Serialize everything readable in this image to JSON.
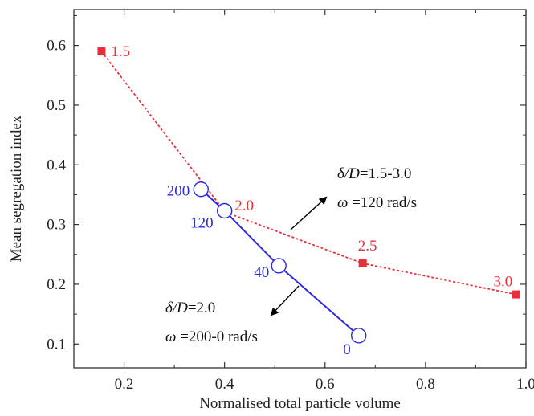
{
  "chart_data": {
    "type": "line",
    "xlabel": "Normalised total particle volume",
    "ylabel": "Mean segregation index",
    "xlim": [
      0.1,
      1.0
    ],
    "ylim": [
      0.06,
      0.66
    ],
    "xticks": [
      0.2,
      0.4,
      0.6,
      0.8,
      1.0
    ],
    "xtick_labels": [
      "0.2",
      "0.4",
      "0.6",
      "0.8",
      "1.0"
    ],
    "yticks": [
      0.1,
      0.2,
      0.3,
      0.4,
      0.5,
      0.6
    ],
    "ytick_labels": [
      "0.1",
      "0.2",
      "0.3",
      "0.4",
      "0.5",
      "0.6"
    ],
    "grid": false,
    "series": [
      {
        "color": "#e8303a",
        "line_style": "dotted",
        "marker": "filled-square",
        "x": [
          0.155,
          0.401,
          0.675,
          0.98
        ],
        "y": [
          0.59,
          0.321,
          0.235,
          0.183
        ],
        "point_labels": [
          "1.5",
          "2.0",
          "2.5",
          "3.0"
        ]
      },
      {
        "color": "#2b2bdc",
        "line_style": "solid",
        "marker": "open-circle",
        "x": [
          0.353,
          0.4,
          0.508,
          0.667
        ],
        "y": [
          0.359,
          0.323,
          0.231,
          0.114
        ],
        "point_labels": [
          "200",
          "120",
          "40",
          "0"
        ]
      }
    ],
    "annotations": [
      {
        "line1_italic": "δ/D",
        "line1_rest": "=1.5-3.0",
        "line2_italic": "ω",
        "line2_rest": " =120 rad/s"
      },
      {
        "line1_italic": "δ/D",
        "line1_rest": "=2.0",
        "line2_italic": "ω",
        "line2_rest": " =200-0 rad/s"
      }
    ]
  }
}
